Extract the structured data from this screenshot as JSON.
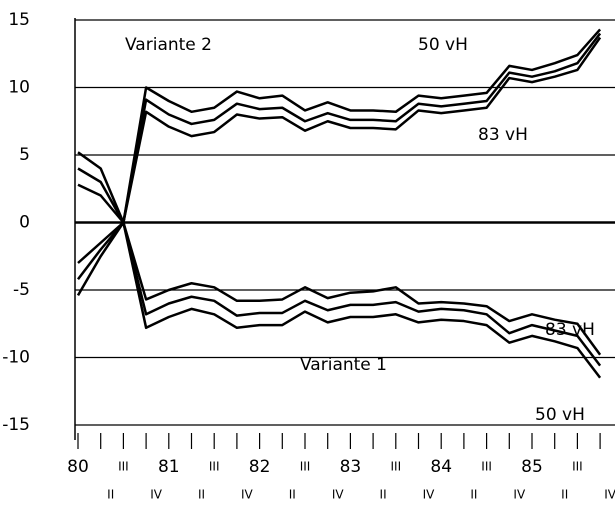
{
  "chart_data": {
    "type": "line",
    "categories": [
      "80",
      "II",
      "III",
      "IV",
      "81",
      "II",
      "III",
      "IV",
      "82",
      "II",
      "III",
      "IV",
      "83",
      "II",
      "III",
      "IV",
      "84",
      "II",
      "III",
      "IV",
      "85",
      "II",
      "III",
      "IV"
    ],
    "series": [
      {
        "color": "#000000",
        "values": [
          5.2,
          4.0,
          0,
          10.0,
          9.0,
          8.2,
          8.5,
          9.7,
          9.2,
          9.4,
          8.3,
          8.9,
          8.3,
          8.3,
          8.2,
          9.4,
          9.2,
          9.4,
          9.6,
          11.6,
          11.3,
          11.8,
          12.4,
          14.3
        ]
      },
      {
        "color": "#000000",
        "values": [
          4.0,
          3.0,
          0,
          9.1,
          8.0,
          7.3,
          7.6,
          8.8,
          8.4,
          8.5,
          7.5,
          8.1,
          7.6,
          7.6,
          7.5,
          8.8,
          8.6,
          8.8,
          9.0,
          11.1,
          10.8,
          11.2,
          11.8,
          14.0
        ]
      },
      {
        "color": "#000000",
        "values": [
          2.8,
          2.0,
          0,
          8.2,
          7.1,
          6.4,
          6.7,
          8.0,
          7.7,
          7.8,
          6.8,
          7.5,
          7.0,
          7.0,
          6.9,
          8.3,
          8.1,
          8.3,
          8.5,
          10.7,
          10.4,
          10.8,
          11.3,
          13.7
        ]
      },
      {
        "color": "#000000",
        "values": [
          -3.0,
          -1.5,
          0,
          -5.7,
          -5.0,
          -4.5,
          -4.8,
          -5.8,
          -5.8,
          -5.7,
          -4.8,
          -5.6,
          -5.2,
          -5.1,
          -4.8,
          -6.0,
          -5.9,
          -6.0,
          -6.2,
          -7.3,
          -6.8,
          -7.2,
          -7.5,
          -9.8
        ]
      },
      {
        "color": "#000000",
        "values": [
          -4.2,
          -2.0,
          0,
          -6.8,
          -6.0,
          -5.5,
          -5.8,
          -6.9,
          -6.7,
          -6.7,
          -5.8,
          -6.5,
          -6.1,
          -6.1,
          -5.9,
          -6.6,
          -6.4,
          -6.5,
          -6.8,
          -8.2,
          -7.6,
          -8.0,
          -8.4,
          -10.6
        ]
      },
      {
        "color": "#000000",
        "values": [
          -5.4,
          -2.5,
          0,
          -7.8,
          -7.0,
          -6.4,
          -6.8,
          -7.8,
          -7.6,
          -7.6,
          -6.6,
          -7.4,
          -7.0,
          -7.0,
          -6.8,
          -7.4,
          -7.2,
          -7.3,
          -7.6,
          -8.9,
          -8.4,
          -8.8,
          -9.3,
          -11.5
        ]
      }
    ],
    "annotations": [
      "Variante 2",
      "50 vH",
      "83 vH",
      "83 vH",
      "Variante 1",
      "50 vH"
    ],
    "ylim": [
      -15,
      15
    ],
    "yticks": [
      -15,
      -10,
      -5,
      0,
      5,
      10,
      15
    ],
    "grid": true
  }
}
